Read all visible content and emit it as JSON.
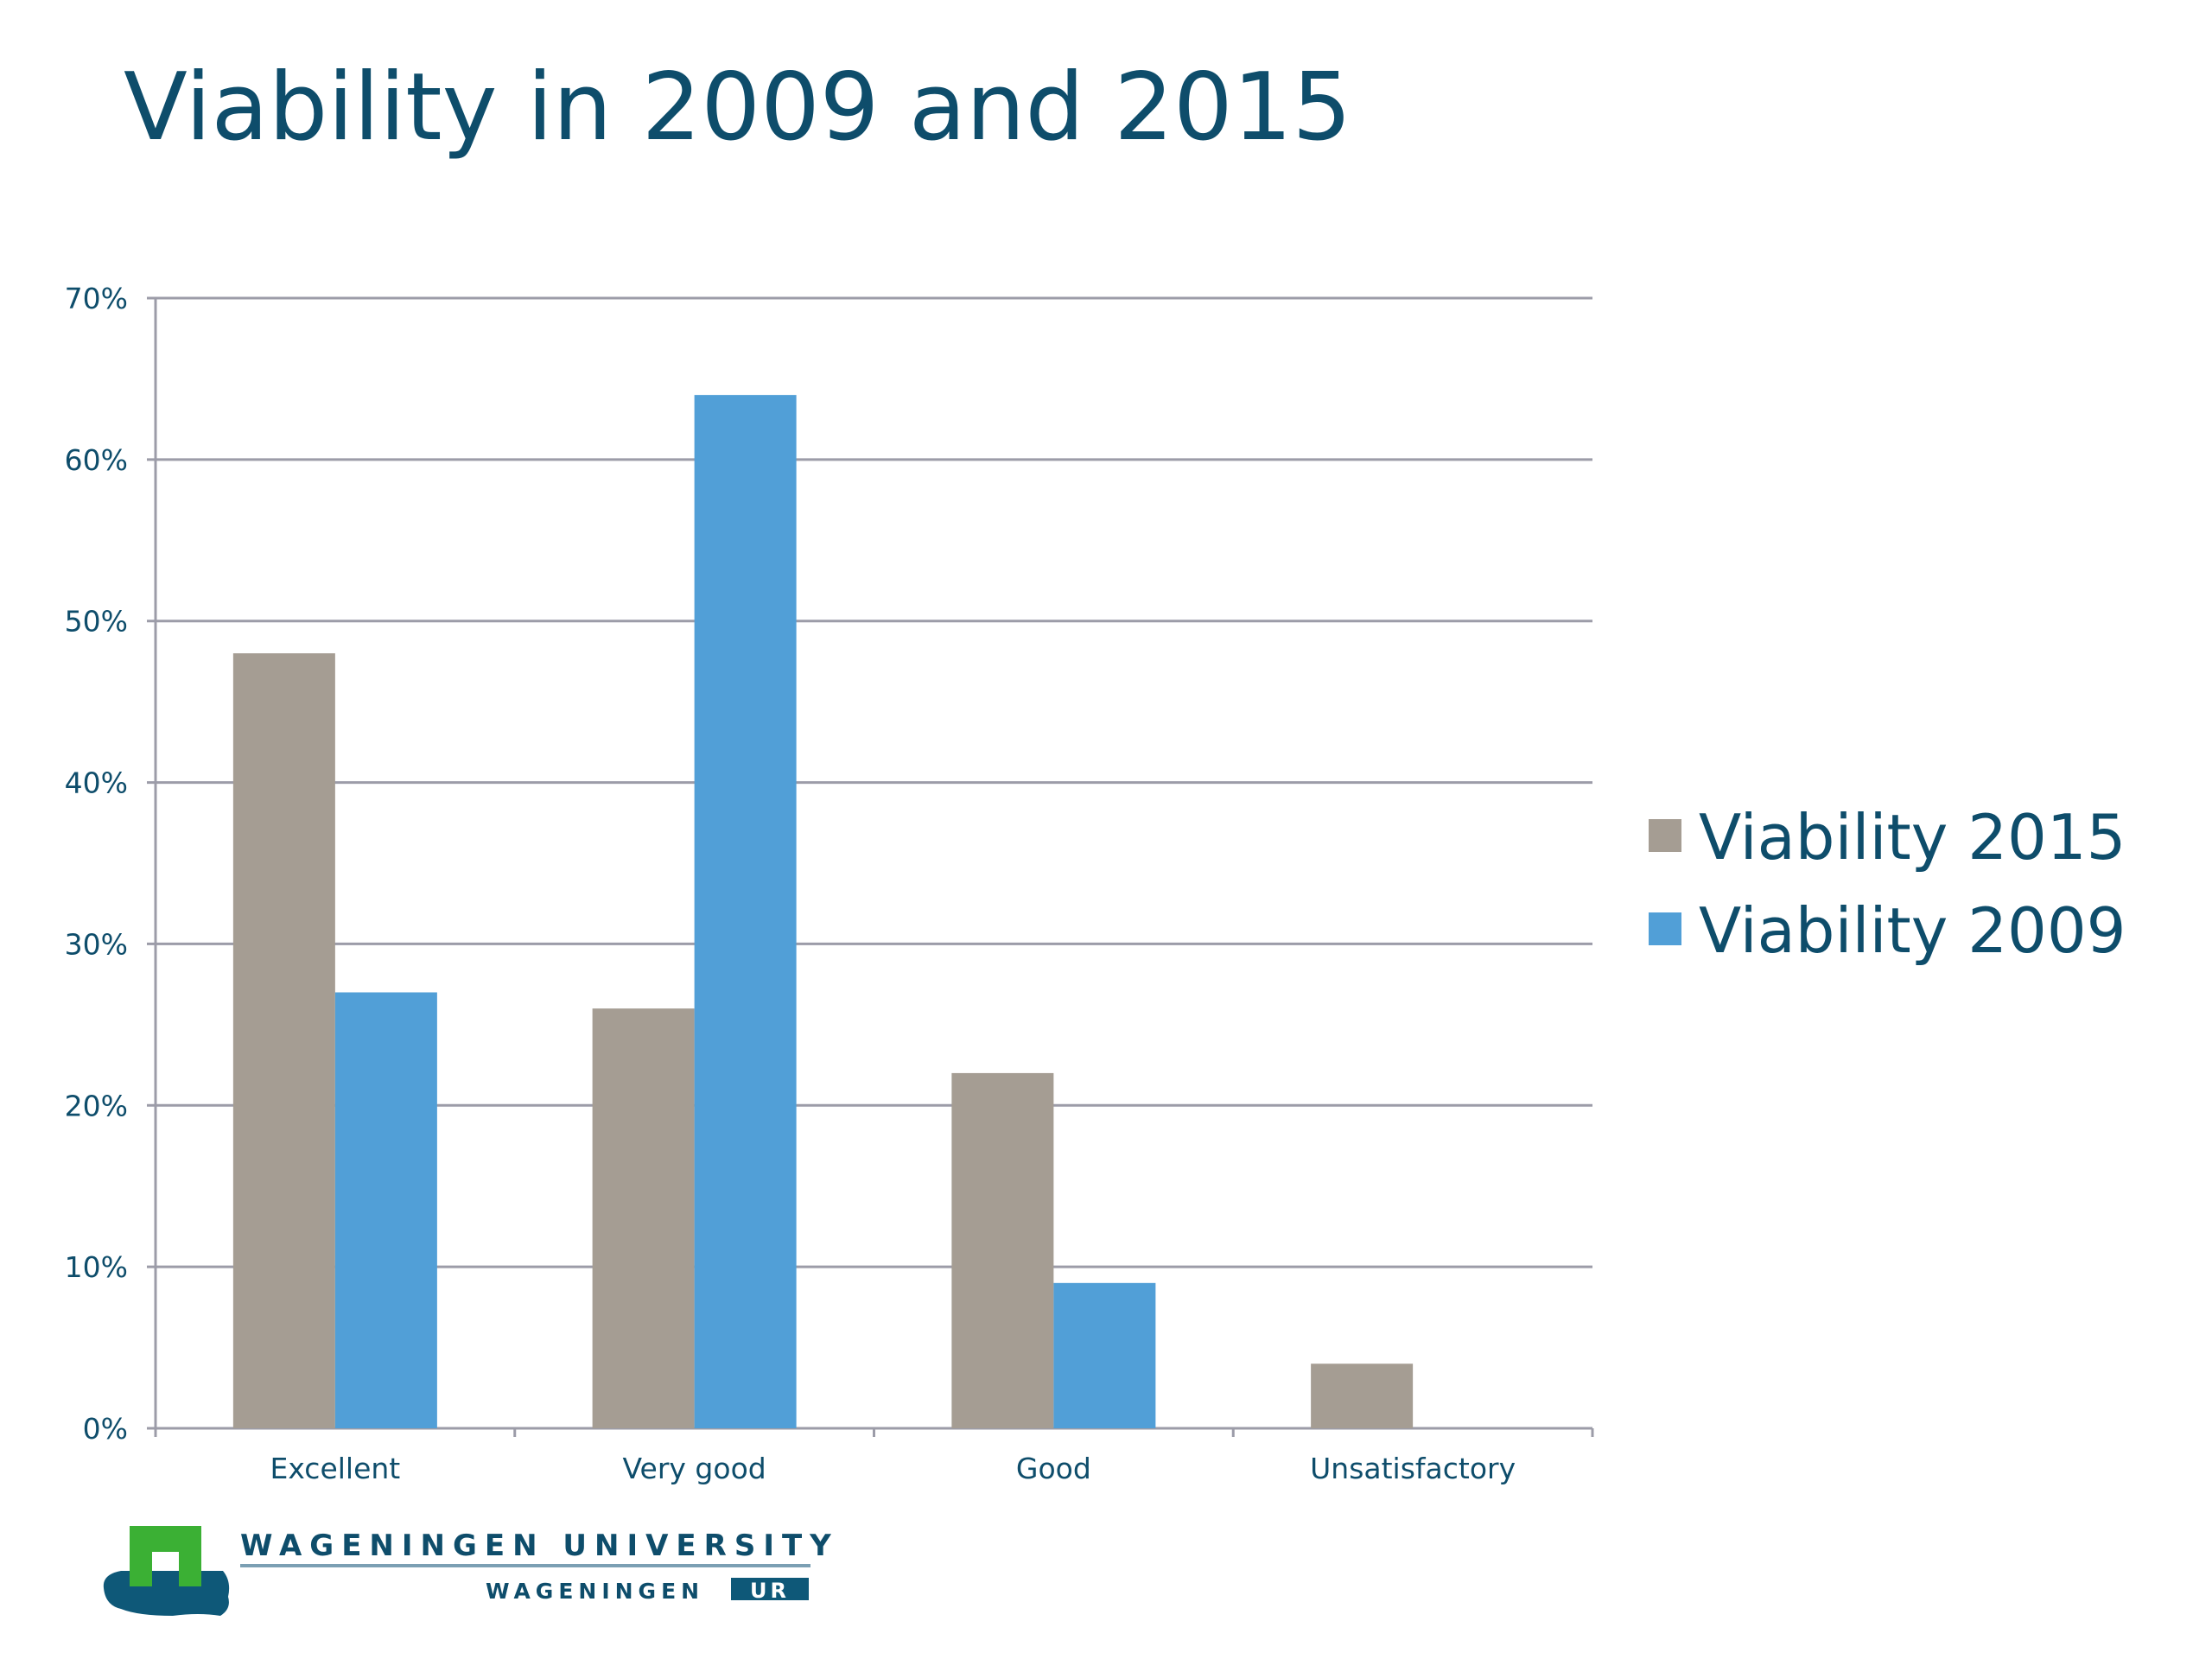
{
  "chart_data": {
    "type": "bar",
    "title": "Viability in 2009 and 2015",
    "categories": [
      "Excellent",
      "Very good",
      "Good",
      "Unsatisfactory"
    ],
    "series": [
      {
        "name": "Viability 2015",
        "color": "#a59d93",
        "values": [
          48,
          26,
          22,
          4
        ]
      },
      {
        "name": "Viability 2009",
        "color": "#519fd7",
        "values": [
          27,
          64,
          9,
          0
        ]
      }
    ],
    "ylim": [
      0,
      70
    ],
    "yticks": [
      "0%",
      "10%",
      "20%",
      "30%",
      "40%",
      "50%",
      "60%",
      "70%"
    ],
    "grid": true,
    "legend": "right",
    "xlabel": "",
    "ylabel": ""
  },
  "logo": {
    "line1": "WAGENINGEN UNIVERSITY",
    "line2": "WAGENINGEN",
    "badge": "UR",
    "green": "#3bb034",
    "blue": "#0e5878"
  }
}
